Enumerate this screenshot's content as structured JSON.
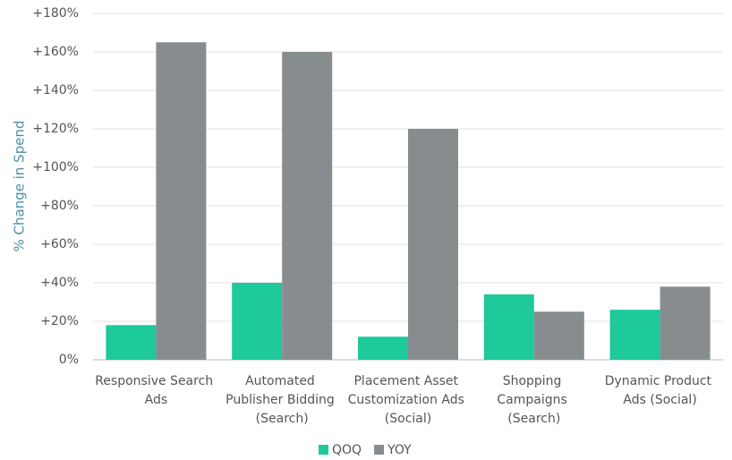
{
  "chart_data": {
    "type": "bar",
    "y_label": "% Change in Spend",
    "categories": [
      "Responsive Search Ads",
      "Automated Publisher Bidding (Search)",
      "Placement Asset Customization Ads (Social)",
      "Shopping Campaigns (Search)",
      "Dynamic Product Ads (Social)"
    ],
    "series": [
      {
        "name": "QOQ",
        "color": "#1ec99a",
        "values": [
          18,
          40,
          12,
          34,
          26
        ]
      },
      {
        "name": "YOY",
        "color": "#878c8e",
        "values": [
          165,
          160,
          120,
          25,
          38
        ]
      }
    ],
    "ylim": [
      0,
      180
    ],
    "yticks": [
      {
        "value": 0,
        "label": "0%"
      },
      {
        "value": 20,
        "label": "+20%"
      },
      {
        "value": 40,
        "label": "+40%"
      },
      {
        "value": 60,
        "label": "+60%"
      },
      {
        "value": 80,
        "label": "+80%"
      },
      {
        "value": 100,
        "label": "+100%"
      },
      {
        "value": 120,
        "label": "+120%"
      },
      {
        "value": 140,
        "label": "+140%"
      },
      {
        "value": 160,
        "label": "+160%"
      },
      {
        "value": 180,
        "label": "+180%"
      }
    ],
    "grid": true,
    "legend": "bottom"
  }
}
